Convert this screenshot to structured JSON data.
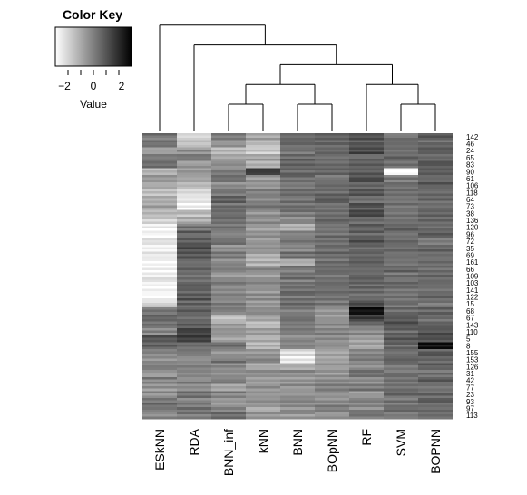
{
  "chart_data": {
    "type": "heatmap",
    "color_key": {
      "title": "Color Key",
      "xlabel": "Value",
      "ticks": [
        -2,
        0,
        2
      ],
      "tick_labels": [
        "−2",
        "0",
        "2"
      ],
      "range": [
        -3,
        3
      ],
      "low_color": "#ffffff",
      "high_color": "#000000"
    },
    "columns": [
      "ESkNN",
      "RDA",
      "BNN_inf",
      "kNN",
      "BNN",
      "BOpNN",
      "RF",
      "SVM",
      "BOPNN"
    ],
    "row_labels": [
      "142",
      "46",
      "24",
      "65",
      "83",
      "90",
      "61",
      "106",
      "118",
      "64",
      "73",
      "38",
      "136",
      "120",
      "96",
      "72",
      "35",
      "69",
      "161",
      "66",
      "109",
      "103",
      "141",
      "122",
      "15",
      "68",
      "67",
      "143",
      "110",
      "5",
      "8",
      "155",
      "153",
      "126",
      "31",
      "42",
      "77",
      "23",
      "93",
      "97",
      "113"
    ],
    "column_dendrogram": "(ESkNN,(RDA,(((BNN_inf,kNN),(BNN,BOpNN)),(RF,(SVM,BOPNN)))))",
    "cell_value_profiles": [
      [
        0.2,
        0.3,
        -0.8,
        0.1,
        0.4,
        -1.2,
        -0.5,
        -1.0,
        -1.5,
        -1.1,
        -0.9,
        -1.3,
        -1.8,
        -2.6,
        -2.8,
        -2.2,
        -2.5,
        -2.4,
        -2.7,
        -2.8,
        -2.5,
        -2.6,
        -2.8,
        -2.9,
        -2.0,
        0.3,
        0.6,
        0.2,
        -0.2,
        1.0,
        0.6,
        -0.4,
        -0.3,
        0.1,
        -0.5,
        0.0,
        -0.6,
        -0.4,
        0.4,
        0.2,
        -0.3
      ],
      [
        -2.0,
        -1.5,
        -0.4,
        0.1,
        -0.7,
        -0.6,
        -0.9,
        -1.4,
        -2.2,
        -2.5,
        -2.7,
        -1.4,
        -1.0,
        0.2,
        0.7,
        0.9,
        1.1,
        0.8,
        0.4,
        0.6,
        0.3,
        0.5,
        0.8,
        0.9,
        0.6,
        1.0,
        0.4,
        0.8,
        1.3,
        1.5,
        0.6,
        0.2,
        -0.4,
        0.1,
        -0.2,
        0.0,
        -0.5,
        0.3,
        -0.1,
        0.2,
        0.1
      ],
      [
        0.1,
        -0.6,
        -1.2,
        -1.0,
        -0.4,
        0.0,
        0.4,
        -0.3,
        0.2,
        0.6,
        0.3,
        0.5,
        0.2,
        0.3,
        -0.2,
        0.4,
        -0.3,
        0.2,
        -0.5,
        0.1,
        -0.6,
        0.2,
        -0.4,
        -0.2,
        0.1,
        -0.3,
        -1.6,
        -0.8,
        -0.5,
        -0.9,
        0.3,
        -0.4,
        0.2,
        -0.3,
        -0.6,
        -0.2,
        -0.9,
        0.0,
        -0.5,
        -0.1,
        0.3
      ],
      [
        -0.9,
        -1.3,
        -1.7,
        -0.8,
        -1.1,
        1.5,
        -0.6,
        -0.4,
        0.1,
        -0.3,
        0.2,
        -0.5,
        -0.2,
        -0.6,
        -0.4,
        -0.7,
        -0.5,
        -0.9,
        -1.1,
        -0.3,
        -0.6,
        -0.2,
        -0.5,
        -0.4,
        -0.6,
        -0.3,
        -1.0,
        -1.3,
        -0.7,
        -0.9,
        -1.2,
        -0.6,
        -0.3,
        -0.9,
        -0.5,
        -0.7,
        -0.4,
        -0.6,
        -0.3,
        -0.8,
        -0.5
      ],
      [
        0.4,
        0.6,
        0.3,
        0.5,
        0.7,
        0.4,
        0.5,
        0.2,
        0.6,
        0.3,
        0.4,
        0.1,
        -0.2,
        -1.3,
        -0.1,
        0.3,
        -0.2,
        0.4,
        -1.1,
        0.2,
        0.3,
        0.1,
        0.5,
        0.2,
        0.3,
        0.1,
        0.4,
        0.2,
        0.1,
        -0.3,
        0.0,
        -2.2,
        -2.5,
        -1.1,
        -0.4,
        -0.6,
        -0.3,
        -0.5,
        -0.2,
        -0.4,
        -0.6
      ],
      [
        0.6,
        0.4,
        0.5,
        0.3,
        0.6,
        0.5,
        0.3,
        0.4,
        0.6,
        0.7,
        0.4,
        0.3,
        0.5,
        0.2,
        0.4,
        0.3,
        0.5,
        0.6,
        0.3,
        0.4,
        0.2,
        0.5,
        0.3,
        0.4,
        0.1,
        -0.4,
        -0.6,
        -0.2,
        0.0,
        -0.3,
        -0.5,
        -0.9,
        -0.7,
        -0.4,
        -0.6,
        -0.3,
        -0.2,
        -0.5,
        -0.3,
        -0.1,
        -0.4
      ],
      [
        1.1,
        0.9,
        1.3,
        0.6,
        1.0,
        0.8,
        1.2,
        0.7,
        1.1,
        0.5,
        0.9,
        1.2,
        0.4,
        0.8,
        0.6,
        1.0,
        0.5,
        0.7,
        0.9,
        0.4,
        0.8,
        0.6,
        0.7,
        0.5,
        1.4,
        2.6,
        1.5,
        0.3,
        -0.4,
        -0.7,
        -0.9,
        -0.2,
        -0.1,
        -0.3,
        0.2,
        -0.4,
        0.1,
        -0.6,
        0.0,
        -0.2,
        0.3
      ],
      [
        0.3,
        0.5,
        0.2,
        0.6,
        0.4,
        -2.9,
        0.1,
        0.3,
        0.5,
        0.2,
        0.4,
        0.1,
        0.3,
        0.6,
        0.2,
        0.5,
        0.3,
        0.4,
        0.2,
        0.6,
        0.3,
        0.5,
        0.2,
        0.4,
        0.3,
        0.5,
        0.9,
        1.1,
        0.6,
        0.8,
        0.5,
        0.3,
        0.6,
        0.2,
        0.4,
        0.1,
        0.3,
        0.5,
        0.2,
        0.4,
        0.1
      ],
      [
        0.9,
        0.5,
        0.8,
        0.6,
        1.0,
        0.7,
        0.5,
        0.9,
        0.4,
        0.6,
        0.3,
        0.5,
        0.7,
        0.4,
        0.6,
        0.2,
        0.5,
        0.4,
        0.6,
        0.3,
        0.5,
        0.4,
        0.2,
        0.5,
        0.3,
        0.6,
        0.4,
        0.7,
        1.0,
        1.2,
        2.6,
        0.8,
        0.5,
        0.6,
        0.4,
        0.7,
        0.3,
        0.5,
        0.6,
        0.4,
        0.5
      ]
    ]
  }
}
